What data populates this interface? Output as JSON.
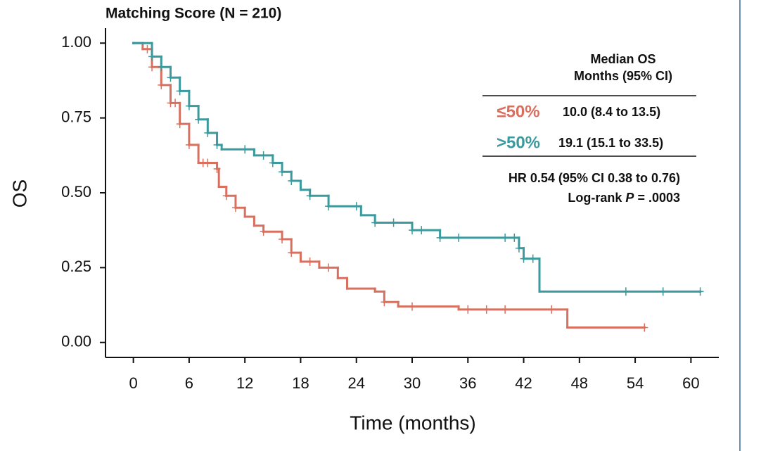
{
  "chart_data": {
    "type": "step",
    "title": "Matching Score (N = 210)",
    "x_label": "Time (months)",
    "y_label": "OS",
    "xlim": [
      -3,
      63
    ],
    "ylim": [
      -0.05,
      1.05
    ],
    "xticks": [
      0,
      6,
      12,
      18,
      24,
      30,
      36,
      42,
      48,
      54,
      60
    ],
    "yticks": [
      {
        "value": 0,
        "label": "0.00"
      },
      {
        "value": 0.25,
        "label": "0.25"
      },
      {
        "value": 0.5,
        "label": "0.50"
      },
      {
        "value": 0.75,
        "label": "0.75"
      },
      {
        "value": 1,
        "label": "1.00"
      }
    ],
    "legend_title": [
      "Median OS",
      "Months (95% CI)"
    ],
    "series": [
      {
        "name": "≤50%",
        "median": "10.0 (8.4 to 13.5)",
        "color": "#d9705f",
        "x": [
          0,
          1,
          2,
          3,
          4,
          5,
          6,
          7,
          9,
          9.2,
          10,
          11,
          12,
          13,
          14,
          16,
          17,
          18,
          20,
          22,
          23,
          26,
          27,
          28.5,
          35,
          46.7,
          55
        ],
        "values": [
          1.0,
          0.98,
          0.92,
          0.86,
          0.8,
          0.73,
          0.66,
          0.6,
          0.58,
          0.52,
          0.49,
          0.45,
          0.42,
          0.39,
          0.37,
          0.345,
          0.3,
          0.27,
          0.25,
          0.215,
          0.18,
          0.17,
          0.135,
          0.12,
          0.11,
          0.05,
          0.05
        ],
        "censored": [
          1.5,
          2,
          3,
          4,
          4.5,
          5,
          6,
          7.5,
          8,
          9,
          10,
          11,
          14,
          16,
          17,
          19,
          21,
          27,
          30,
          36,
          38,
          40,
          45,
          55
        ]
      },
      {
        "name": ">50%",
        "median": "19.1 (15.1 to 33.5)",
        "color": "#3a9a9e",
        "x": [
          0,
          2,
          3,
          4,
          5,
          6,
          7,
          8,
          9,
          9.5,
          13,
          15,
          16,
          17,
          18,
          19,
          21,
          24.5,
          26,
          30,
          33,
          41.5,
          42,
          43.7,
          61
        ],
        "values": [
          1.0,
          0.955,
          0.92,
          0.885,
          0.84,
          0.79,
          0.745,
          0.7,
          0.66,
          0.645,
          0.625,
          0.6,
          0.57,
          0.54,
          0.51,
          0.49,
          0.455,
          0.425,
          0.4,
          0.375,
          0.35,
          0.315,
          0.28,
          0.17,
          0.17
        ],
        "censored": [
          2,
          3,
          4,
          5,
          6,
          7,
          8,
          9,
          12,
          14,
          15,
          16,
          17,
          19,
          21,
          24,
          26,
          28,
          30,
          31,
          33,
          35,
          40,
          41,
          41.5,
          42,
          43,
          53,
          57,
          61
        ]
      }
    ],
    "annotations": [
      "HR 0.54 (95% CI 0.38 to 0.76)",
      "Log-rank ",
      "P",
      " = .0003"
    ]
  }
}
